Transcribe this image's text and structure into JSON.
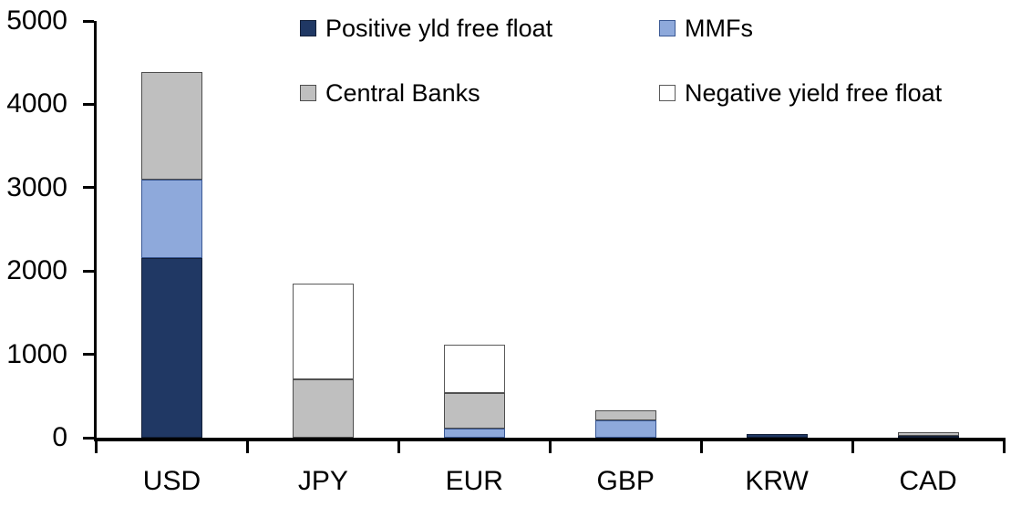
{
  "chart_data": {
    "type": "bar",
    "stacked": true,
    "title": "",
    "xlabel": "",
    "ylabel": "",
    "categories": [
      "USD",
      "JPY",
      "EUR",
      "GBP",
      "KRW",
      "CAD"
    ],
    "series": [
      {
        "name": "Positive yld free float",
        "color": "#203864",
        "border": "#121f38",
        "values": [
          2150,
          0,
          0,
          0,
          45,
          25
        ]
      },
      {
        "name": "MMFs",
        "color": "#8EA9DB",
        "border": "#3a5894",
        "values": [
          950,
          0,
          110,
          210,
          0,
          0
        ]
      },
      {
        "name": "Central Banks",
        "color": "#BFBFBF",
        "border": "#4d4d4d",
        "values": [
          1290,
          700,
          430,
          120,
          0,
          40
        ]
      },
      {
        "name": "Negative yield free float",
        "color": "#FFFFFF",
        "border": "#595959",
        "values": [
          0,
          1150,
          575,
          0,
          0,
          0
        ]
      }
    ],
    "ylim": [
      0,
      5000
    ],
    "yticks": [
      0,
      1000,
      2000,
      3000,
      4000,
      5000
    ],
    "ytick_labels": [
      "0",
      "1000",
      "2000",
      "3000",
      "4000",
      "5000"
    ],
    "grid": false,
    "legend_position": "top",
    "legend_rows": [
      [
        "Positive yld free float",
        "MMFs"
      ],
      [
        "Central Banks",
        "Negative yield free float"
      ]
    ],
    "axis_color": "#000000",
    "text_color": "#000000"
  }
}
